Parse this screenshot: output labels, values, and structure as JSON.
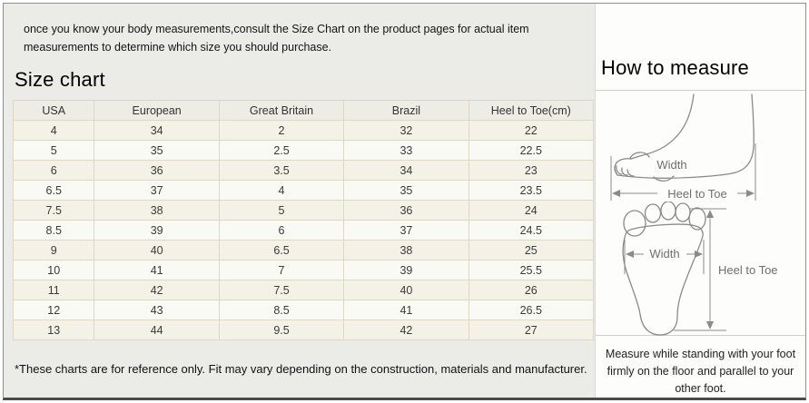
{
  "intro": {
    "text": "once you know your body measurements,consult the Size Chart on the product pages for actual item measurements to determine which size you should purchase."
  },
  "size_chart": {
    "title": "Size chart",
    "columns": [
      "USA",
      "European",
      "Great Britain",
      "Brazil",
      "Heel to Toe(cm)"
    ],
    "rows": [
      [
        "4",
        "34",
        "2",
        "32",
        "22"
      ],
      [
        "5",
        "35",
        "2.5",
        "33",
        "22.5"
      ],
      [
        "6",
        "36",
        "3.5",
        "34",
        "23"
      ],
      [
        "6.5",
        "37",
        "4",
        "35",
        "23.5"
      ],
      [
        "7.5",
        "38",
        "5",
        "36",
        "24"
      ],
      [
        "8.5",
        "39",
        "6",
        "37",
        "24.5"
      ],
      [
        "9",
        "40",
        "6.5",
        "38",
        "25"
      ],
      [
        "10",
        "41",
        "7",
        "39",
        "25.5"
      ],
      [
        "11",
        "42",
        "7.5",
        "40",
        "26"
      ],
      [
        "12",
        "43",
        "8.5",
        "41",
        "26.5"
      ],
      [
        "13",
        "44",
        "9.5",
        "42",
        "27"
      ]
    ],
    "footnote": "*These charts are for reference only. Fit may vary depending on the construction, materials and manufacturer."
  },
  "how_to_measure": {
    "title": "How to measure",
    "side_view_diagram": {
      "width_label": "Width",
      "length_label": "Heel to Toe"
    },
    "footprint_diagram": {
      "width_label": "Width",
      "length_label": "Heel to Toe"
    },
    "note": "Measure while standing with your foot firmly on the floor and parallel to your other foot."
  },
  "colors": {
    "left_panel_bg": "#ebebe8",
    "right_panel_bg": "#fdfdfc",
    "table_header_bg": "#edece5",
    "table_row_odd_bg": "#f4f2e6",
    "table_row_even_bg": "#fafaf4",
    "table_border": "#dcd8c5",
    "frame_border": "#8f8f8f",
    "frame_bottom_border": "#4a4a4a",
    "diagram_line": "#8a8a8a"
  }
}
